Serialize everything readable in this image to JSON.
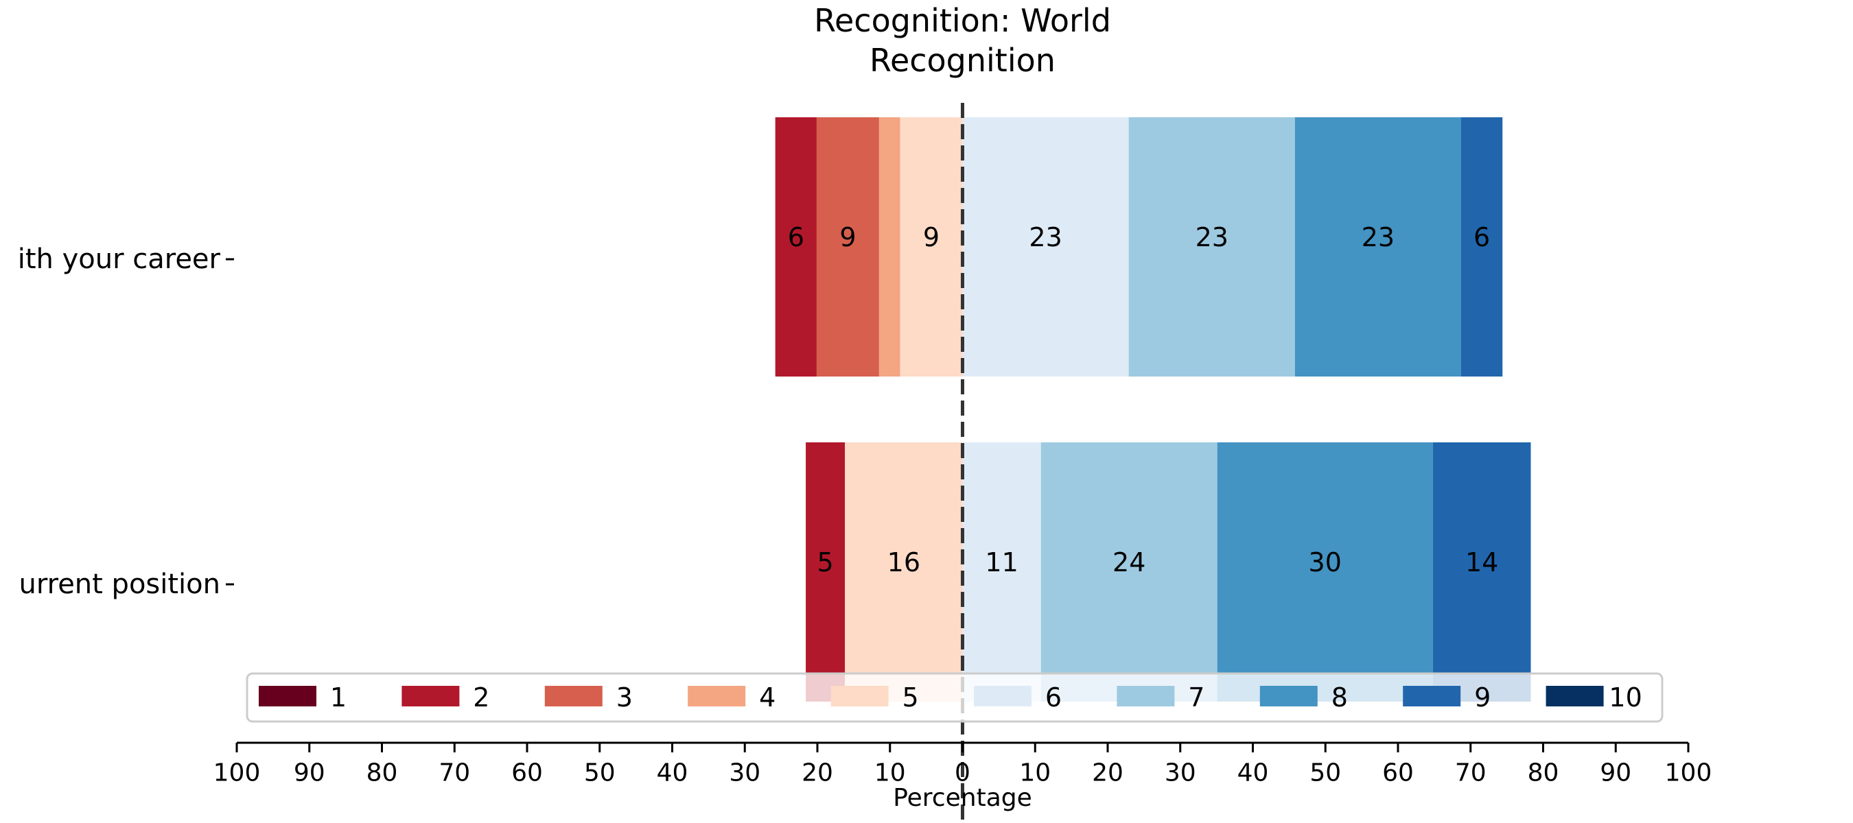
{
  "chart_data": {
    "type": "bar",
    "orientation": "horizontal",
    "stacking": "diverging",
    "title_lines": [
      "Recognition: World",
      "Recognition"
    ],
    "xlabel": "Percentage",
    "ylabel": "",
    "xlim": [
      -100,
      100
    ],
    "x_ticks": [
      -100,
      -90,
      -80,
      -70,
      -60,
      -50,
      -40,
      -30,
      -20,
      -10,
      0,
      10,
      20,
      30,
      40,
      50,
      60,
      70,
      80,
      90,
      100
    ],
    "x_tick_labels": [
      "100",
      "90",
      "80",
      "70",
      "60",
      "50",
      "40",
      "30",
      "20",
      "10",
      "0",
      "10",
      "20",
      "30",
      "40",
      "50",
      "60",
      "70",
      "80",
      "90",
      "100"
    ],
    "categories": [
      "ith your career",
      "urrent position"
    ],
    "center": 0,
    "legend_position": "bottom",
    "series": [
      {
        "name": "1",
        "color": "#67001f",
        "values": [
          0,
          0
        ]
      },
      {
        "name": "2",
        "color": "#b2182b",
        "values": [
          5.7,
          5.4
        ]
      },
      {
        "name": "3",
        "color": "#d6604d",
        "values": [
          8.6,
          0
        ]
      },
      {
        "name": "4",
        "color": "#f4a582",
        "values": [
          2.9,
          0
        ]
      },
      {
        "name": "5",
        "color": "#fddbc7",
        "values": [
          8.6,
          16.2
        ]
      },
      {
        "name": "6",
        "color": "#deebf7",
        "values": [
          22.9,
          10.8
        ]
      },
      {
        "name": "7",
        "color": "#9ecae1",
        "values": [
          22.9,
          24.3
        ]
      },
      {
        "name": "8",
        "color": "#4393c3",
        "values": [
          22.9,
          29.7
        ]
      },
      {
        "name": "9",
        "color": "#2166ac",
        "values": [
          5.7,
          13.5
        ]
      },
      {
        "name": "10",
        "color": "#053061",
        "values": [
          0,
          0
        ]
      }
    ],
    "data_labels": [
      [
        "",
        "6",
        "9",
        "",
        "9",
        "23",
        "23",
        "23",
        "6",
        ""
      ],
      [
        "",
        "5",
        "",
        "",
        "16",
        "11",
        "24",
        "30",
        "14",
        ""
      ]
    ]
  }
}
